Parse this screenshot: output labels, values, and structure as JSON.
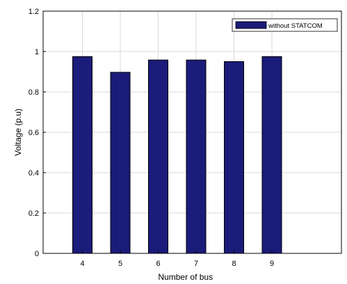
{
  "chart_data": {
    "type": "bar",
    "categories": [
      "4",
      "5",
      "6",
      "7",
      "8",
      "9"
    ],
    "series": [
      {
        "name": "without STATCOM",
        "values": [
          0.975,
          0.897,
          0.958,
          0.958,
          0.95,
          0.975
        ]
      }
    ],
    "xlabel": "Number of bus",
    "ylabel": "Voltage (p.u)",
    "ylim": [
      0,
      1.2
    ],
    "yticks": [
      "0",
      "0.2",
      "0.4",
      "0.6",
      "0.8",
      "1",
      "1.2"
    ],
    "grid": true,
    "legend_position": "top-right",
    "colors": {
      "bar": "#1b1b7a",
      "grid": "#d9d9d9",
      "axis": "#000000"
    }
  }
}
